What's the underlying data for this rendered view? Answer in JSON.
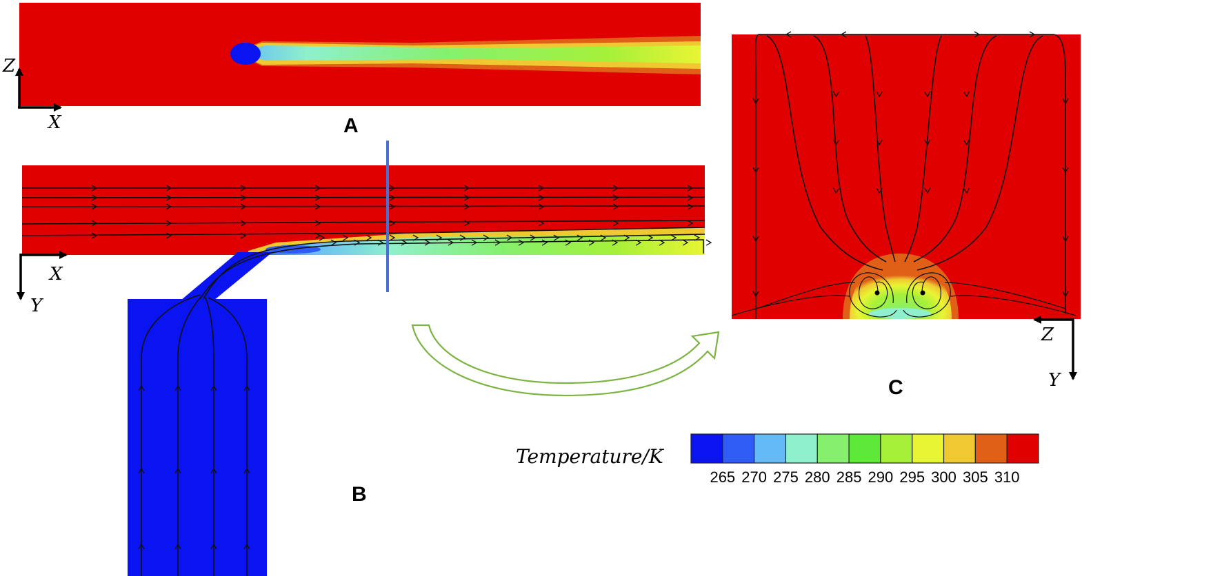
{
  "panels": {
    "a": {
      "label": "A",
      "axis_vertical": "Z",
      "axis_horizontal": "X"
    },
    "b": {
      "label": "B",
      "axis_horizontal": "X",
      "axis_vertical": "Y"
    },
    "c": {
      "label": "C",
      "axis_horizontal": "Z",
      "axis_vertical": "Y"
    }
  },
  "legend": {
    "title": "Temperature/K",
    "ticks": [
      "265",
      "270",
      "275",
      "280",
      "285",
      "290",
      "295",
      "300",
      "305",
      "310"
    ],
    "colors": [
      "#0a14f0",
      "#2f5cf5",
      "#64baf7",
      "#8ef0cc",
      "#86f06e",
      "#5ee83a",
      "#a6f03a",
      "#e8f532",
      "#f0c832",
      "#e06018",
      "#e00000"
    ]
  },
  "colors": {
    "hot": "#e00000",
    "cold": "#0a14f0",
    "cut_plane": "#4a6fd0",
    "arrow_outline": "#7cb342"
  }
}
